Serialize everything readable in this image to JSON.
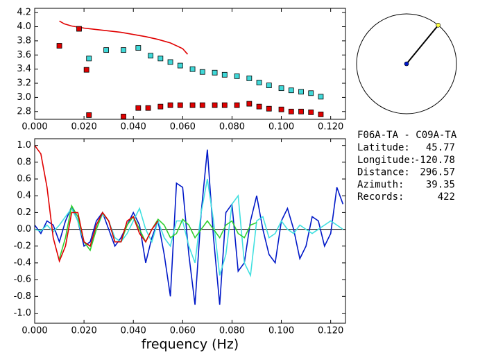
{
  "chart_data": [
    {
      "type": "scatter",
      "xlim": [
        0,
        0.126
      ],
      "ylim": [
        2.69,
        4.26
      ],
      "xticks": [
        {
          "value": 0,
          "label": "0.000"
        },
        {
          "value": 0.02,
          "label": "0.020"
        },
        {
          "value": 0.04,
          "label": "0.040"
        },
        {
          "value": 0.06,
          "label": "0.060"
        },
        {
          "value": 0.08,
          "label": "0.080"
        },
        {
          "value": 0.1,
          "label": "0.100"
        },
        {
          "value": 0.12,
          "label": "0.120"
        }
      ],
      "yticks": [
        2.8,
        {
          "value": 3,
          "label": "3.0"
        },
        3.2,
        3.4,
        3.6,
        3.8,
        {
          "value": 4,
          "label": "4.0"
        },
        4.2
      ],
      "series": [
        {
          "mode": "line",
          "color": "#e00000",
          "x": [
            0.01,
            0.012,
            0.015,
            0.02,
            0.025,
            0.03,
            0.035,
            0.04,
            0.045,
            0.05,
            0.055,
            0.06,
            0.062
          ],
          "values": [
            4.08,
            4.04,
            4.01,
            3.98,
            3.96,
            3.94,
            3.92,
            3.89,
            3.86,
            3.82,
            3.77,
            3.69,
            3.61
          ]
        },
        {
          "mode": "markers",
          "color": "#e00000",
          "x": [
            0.01,
            0.018,
            0.021,
            0.022,
            0.036,
            0.042,
            0.046,
            0.051,
            0.055,
            0.059,
            0.064,
            0.068,
            0.073,
            0.077,
            0.082,
            0.087,
            0.091,
            0.095,
            0.1,
            0.104,
            0.108,
            0.112,
            0.116
          ],
          "values": [
            3.73,
            3.97,
            3.39,
            2.75,
            2.73,
            2.85,
            2.85,
            2.87,
            2.89,
            2.89,
            2.89,
            2.89,
            2.89,
            2.89,
            2.89,
            2.91,
            2.87,
            2.84,
            2.83,
            2.8,
            2.8,
            2.79,
            2.76
          ]
        },
        {
          "mode": "markers",
          "color": "#40d8d8",
          "x": [
            0.022,
            0.029,
            0.036,
            0.042,
            0.047,
            0.051,
            0.055,
            0.059,
            0.064,
            0.068,
            0.073,
            0.077,
            0.082,
            0.087,
            0.091,
            0.095,
            0.1,
            0.104,
            0.108,
            0.112,
            0.116
          ],
          "values": [
            3.55,
            3.67,
            3.67,
            3.7,
            3.59,
            3.55,
            3.5,
            3.45,
            3.4,
            3.36,
            3.35,
            3.32,
            3.3,
            3.27,
            3.21,
            3.17,
            3.13,
            3.1,
            3.08,
            3.06,
            3.01
          ]
        }
      ]
    },
    {
      "type": "line",
      "xlabel": "frequency (Hz)",
      "xlim": [
        0,
        0.126
      ],
      "ylim": [
        -1.12,
        1.08
      ],
      "xticks": [
        {
          "value": 0,
          "label": "0.000"
        },
        {
          "value": 0.02,
          "label": "0.020"
        },
        {
          "value": 0.04,
          "label": "0.040"
        },
        {
          "value": 0.06,
          "label": "0.060"
        },
        {
          "value": 0.08,
          "label": "0.080"
        },
        {
          "value": 0.1,
          "label": "0.100"
        },
        {
          "value": 0.12,
          "label": "0.120"
        }
      ],
      "yticks": [
        {
          "value": -1,
          "label": "-1.0"
        },
        -0.8,
        -0.6,
        -0.4,
        -0.2,
        {
          "value": 0,
          "label": "0.0"
        },
        0.2,
        0.4,
        0.6,
        0.8,
        {
          "value": 1,
          "label": "1.0"
        }
      ],
      "series": [
        {
          "color": "#0018c8",
          "x": [
            0,
            0.0025,
            0.005,
            0.0075,
            0.01,
            0.0125,
            0.015,
            0.0175,
            0.02,
            0.0225,
            0.025,
            0.0275,
            0.03,
            0.0325,
            0.035,
            0.0375,
            0.04,
            0.0425,
            0.045,
            0.0475,
            0.05,
            0.0525,
            0.055,
            0.0575,
            0.06,
            0.0625,
            0.065,
            0.0675,
            0.07,
            0.0725,
            0.075,
            0.0775,
            0.08,
            0.0825,
            0.085,
            0.0875,
            0.09,
            0.0925,
            0.095,
            0.0975,
            0.1,
            0.1025,
            0.105,
            0.1075,
            0.11,
            0.1125,
            0.115,
            0.1175,
            0.12,
            0.1225,
            0.125
          ],
          "values": [
            0.05,
            -0.05,
            0.1,
            0.05,
            -0.15,
            0.1,
            0.27,
            0.1,
            -0.2,
            -0.15,
            0.1,
            0.2,
            0.0,
            -0.2,
            -0.1,
            0.05,
            0.2,
            0.05,
            -0.4,
            -0.1,
            0.1,
            -0.3,
            -0.8,
            0.55,
            0.5,
            -0.3,
            -0.9,
            0.2,
            0.95,
            -0.1,
            -0.9,
            0.2,
            0.3,
            -0.5,
            -0.4,
            0.1,
            0.4,
            0.0,
            -0.3,
            -0.4,
            0.1,
            0.25,
            0.0,
            -0.35,
            -0.2,
            0.15,
            0.1,
            -0.2,
            -0.05,
            0.5,
            0.3
          ]
        },
        {
          "color": "#40e0e0",
          "x": [
            0,
            0.0025,
            0.005,
            0.0075,
            0.01,
            0.0125,
            0.015,
            0.0175,
            0.02,
            0.0225,
            0.025,
            0.0275,
            0.03,
            0.0325,
            0.035,
            0.0375,
            0.04,
            0.0425,
            0.045,
            0.0475,
            0.05,
            0.0525,
            0.055,
            0.0575,
            0.06,
            0.0625,
            0.065,
            0.0675,
            0.07,
            0.0725,
            0.075,
            0.0775,
            0.08,
            0.0825,
            0.085,
            0.0875,
            0.09,
            0.0925,
            0.095,
            0.0975,
            0.1,
            0.1025,
            0.105,
            0.1075,
            0.11,
            0.1125,
            0.115,
            0.1175,
            0.12,
            0.1225,
            0.125
          ],
          "values": [
            0.0,
            -0.02,
            0.05,
            -0.03,
            0.05,
            0.15,
            0.25,
            0.1,
            -0.15,
            -0.2,
            0.0,
            0.18,
            0.1,
            -0.1,
            -0.15,
            -0.05,
            0.1,
            0.25,
            0.0,
            -0.15,
            0.1,
            -0.1,
            -0.2,
            0.1,
            0.1,
            -0.2,
            -0.4,
            0.2,
            0.6,
            0.1,
            -0.55,
            -0.3,
            0.3,
            0.4,
            -0.4,
            -0.55,
            0.1,
            0.15,
            -0.1,
            -0.05,
            0.1,
            0.0,
            -0.05,
            0.05,
            0.0,
            -0.05,
            0.0,
            0.05,
            0.1,
            0.05,
            0.0
          ]
        },
        {
          "color": "#30d030",
          "x": [
            0.01,
            0.0125,
            0.015,
            0.0175,
            0.02,
            0.0225,
            0.025,
            0.0275,
            0.03,
            0.0325,
            0.035,
            0.0375,
            0.04,
            0.0425,
            0.045,
            0.0475,
            0.05,
            0.0525,
            0.055,
            0.0575,
            0.06,
            0.0625,
            0.065,
            0.0675,
            0.07,
            0.0725,
            0.075,
            0.0775,
            0.08,
            0.0825,
            0.085,
            0.0875,
            0.09
          ],
          "values": [
            -0.35,
            -0.1,
            0.28,
            0.15,
            -0.15,
            -0.25,
            0.0,
            0.2,
            0.1,
            -0.15,
            -0.15,
            0.05,
            0.15,
            0.0,
            -0.15,
            0.0,
            0.12,
            0.05,
            -0.1,
            -0.05,
            0.12,
            0.05,
            -0.1,
            0.0,
            0.1,
            0.0,
            -0.1,
            0.05,
            0.1,
            -0.05,
            -0.1,
            0.05,
            0.08
          ]
        },
        {
          "color": "#e00000",
          "x": [
            0,
            0.0025,
            0.005,
            0.0075,
            0.01,
            0.0125,
            0.015,
            0.0175,
            0.02,
            0.0225,
            0.025,
            0.0275,
            0.03,
            0.0325,
            0.035,
            0.0375,
            0.04,
            0.0425,
            0.045,
            0.0475,
            0.05
          ],
          "values": [
            1.0,
            0.9,
            0.5,
            -0.1,
            -0.38,
            -0.2,
            0.2,
            0.2,
            -0.15,
            -0.2,
            0.05,
            0.2,
            0.1,
            -0.15,
            -0.15,
            0.1,
            0.15,
            -0.05,
            -0.15,
            0.0,
            0.1
          ]
        }
      ]
    }
  ],
  "station_info": {
    "title": "F06A-TA - C09A-TA",
    "fields": [
      {
        "label": "Latitude:",
        "value": 45.77
      },
      {
        "label": "Longitude:",
        "value": -120.78
      },
      {
        "label": "Distance:",
        "value": 296.57
      },
      {
        "label": "Azimuth:",
        "value": 39.35
      },
      {
        "label": "Records:",
        "value": 422
      }
    ]
  }
}
